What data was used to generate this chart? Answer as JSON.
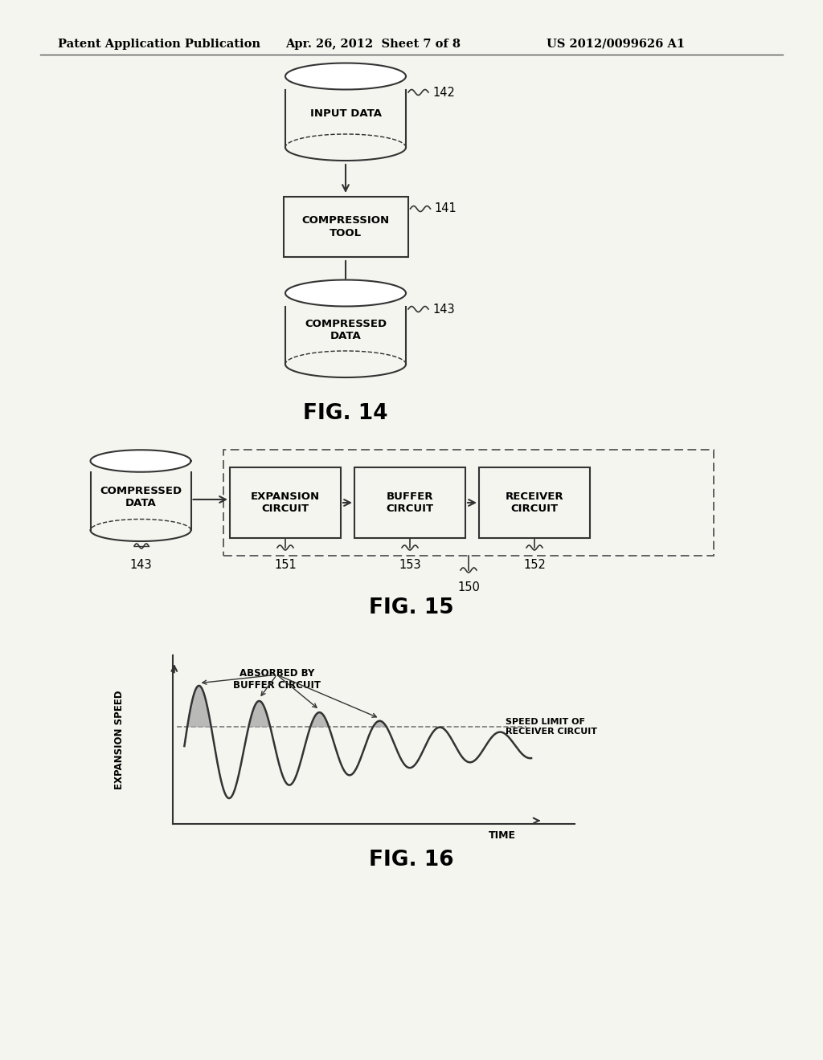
{
  "bg_color": "#f5f5f0",
  "header_left": "Patent Application Publication",
  "header_mid": "Apr. 26, 2012  Sheet 7 of 8",
  "header_right": "US 2012/0099626 A1",
  "fig14_label": "FIG. 14",
  "fig15_label": "FIG. 15",
  "fig16_label": "FIG. 16",
  "node142_label": "INPUT DATA",
  "node142_ref": "142",
  "node141_label": "COMPRESSION\nTOOL",
  "node141_ref": "141",
  "node143a_label": "COMPRESSED\nDATA",
  "node143a_ref": "143",
  "node143b_label": "COMPRESSED\nDATA",
  "node143b_ref": "143",
  "node151_label": "EXPANSION\nCIRCUIT",
  "node151_ref": "151",
  "node153_label": "BUFFER\nCIRCUIT",
  "node153_ref": "153",
  "node152_label": "RECEIVER\nCIRCUIT",
  "node152_ref": "152",
  "node150_ref": "150",
  "graph_ylabel": "EXPANSION SPEED",
  "graph_xlabel": "TIME",
  "graph_speed_limit_label": "SPEED LIMIT OF\nRECEIVER CIRCUIT",
  "graph_absorbed_label": "ABSORBED BY\nBUFFER CIRCUIT",
  "line_color": "#333333",
  "fill_color": "#aaaaaa",
  "text_color": "#000000"
}
